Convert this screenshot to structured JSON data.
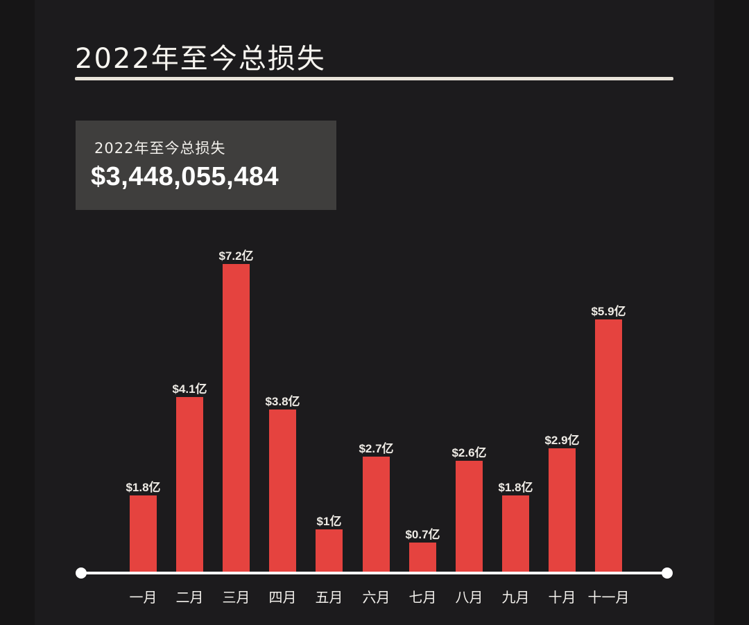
{
  "header": {
    "title": "2022年至今总损失"
  },
  "kpi": {
    "label": "2022年至今总损失",
    "value": "$3,448,055,484"
  },
  "colors": {
    "background": "#1c1b1d",
    "bar": "#e5433f",
    "kpi_box": "#3f3e3d",
    "axis": "#ffffff"
  },
  "chart_data": {
    "type": "bar",
    "title": "2022年至今总损失",
    "xlabel": "",
    "ylabel": "",
    "unit": "亿美元",
    "categories": [
      "一月",
      "二月",
      "三月",
      "四月",
      "五月",
      "六月",
      "七月",
      "八月",
      "九月",
      "十月",
      "十一月"
    ],
    "values": [
      1.8,
      4.1,
      7.2,
      3.8,
      1.0,
      2.7,
      0.7,
      2.6,
      1.8,
      2.9,
      5.9
    ],
    "data_labels": [
      "$1.8亿",
      "$4.1亿",
      "$7.2亿",
      "$3.8亿",
      "$1亿",
      "$2.7亿",
      "$0.7亿",
      "$2.6亿",
      "$1.8亿",
      "$2.9亿",
      "$5.9亿"
    ],
    "ylim": [
      0,
      7.5
    ],
    "grid": false,
    "legend": null
  }
}
